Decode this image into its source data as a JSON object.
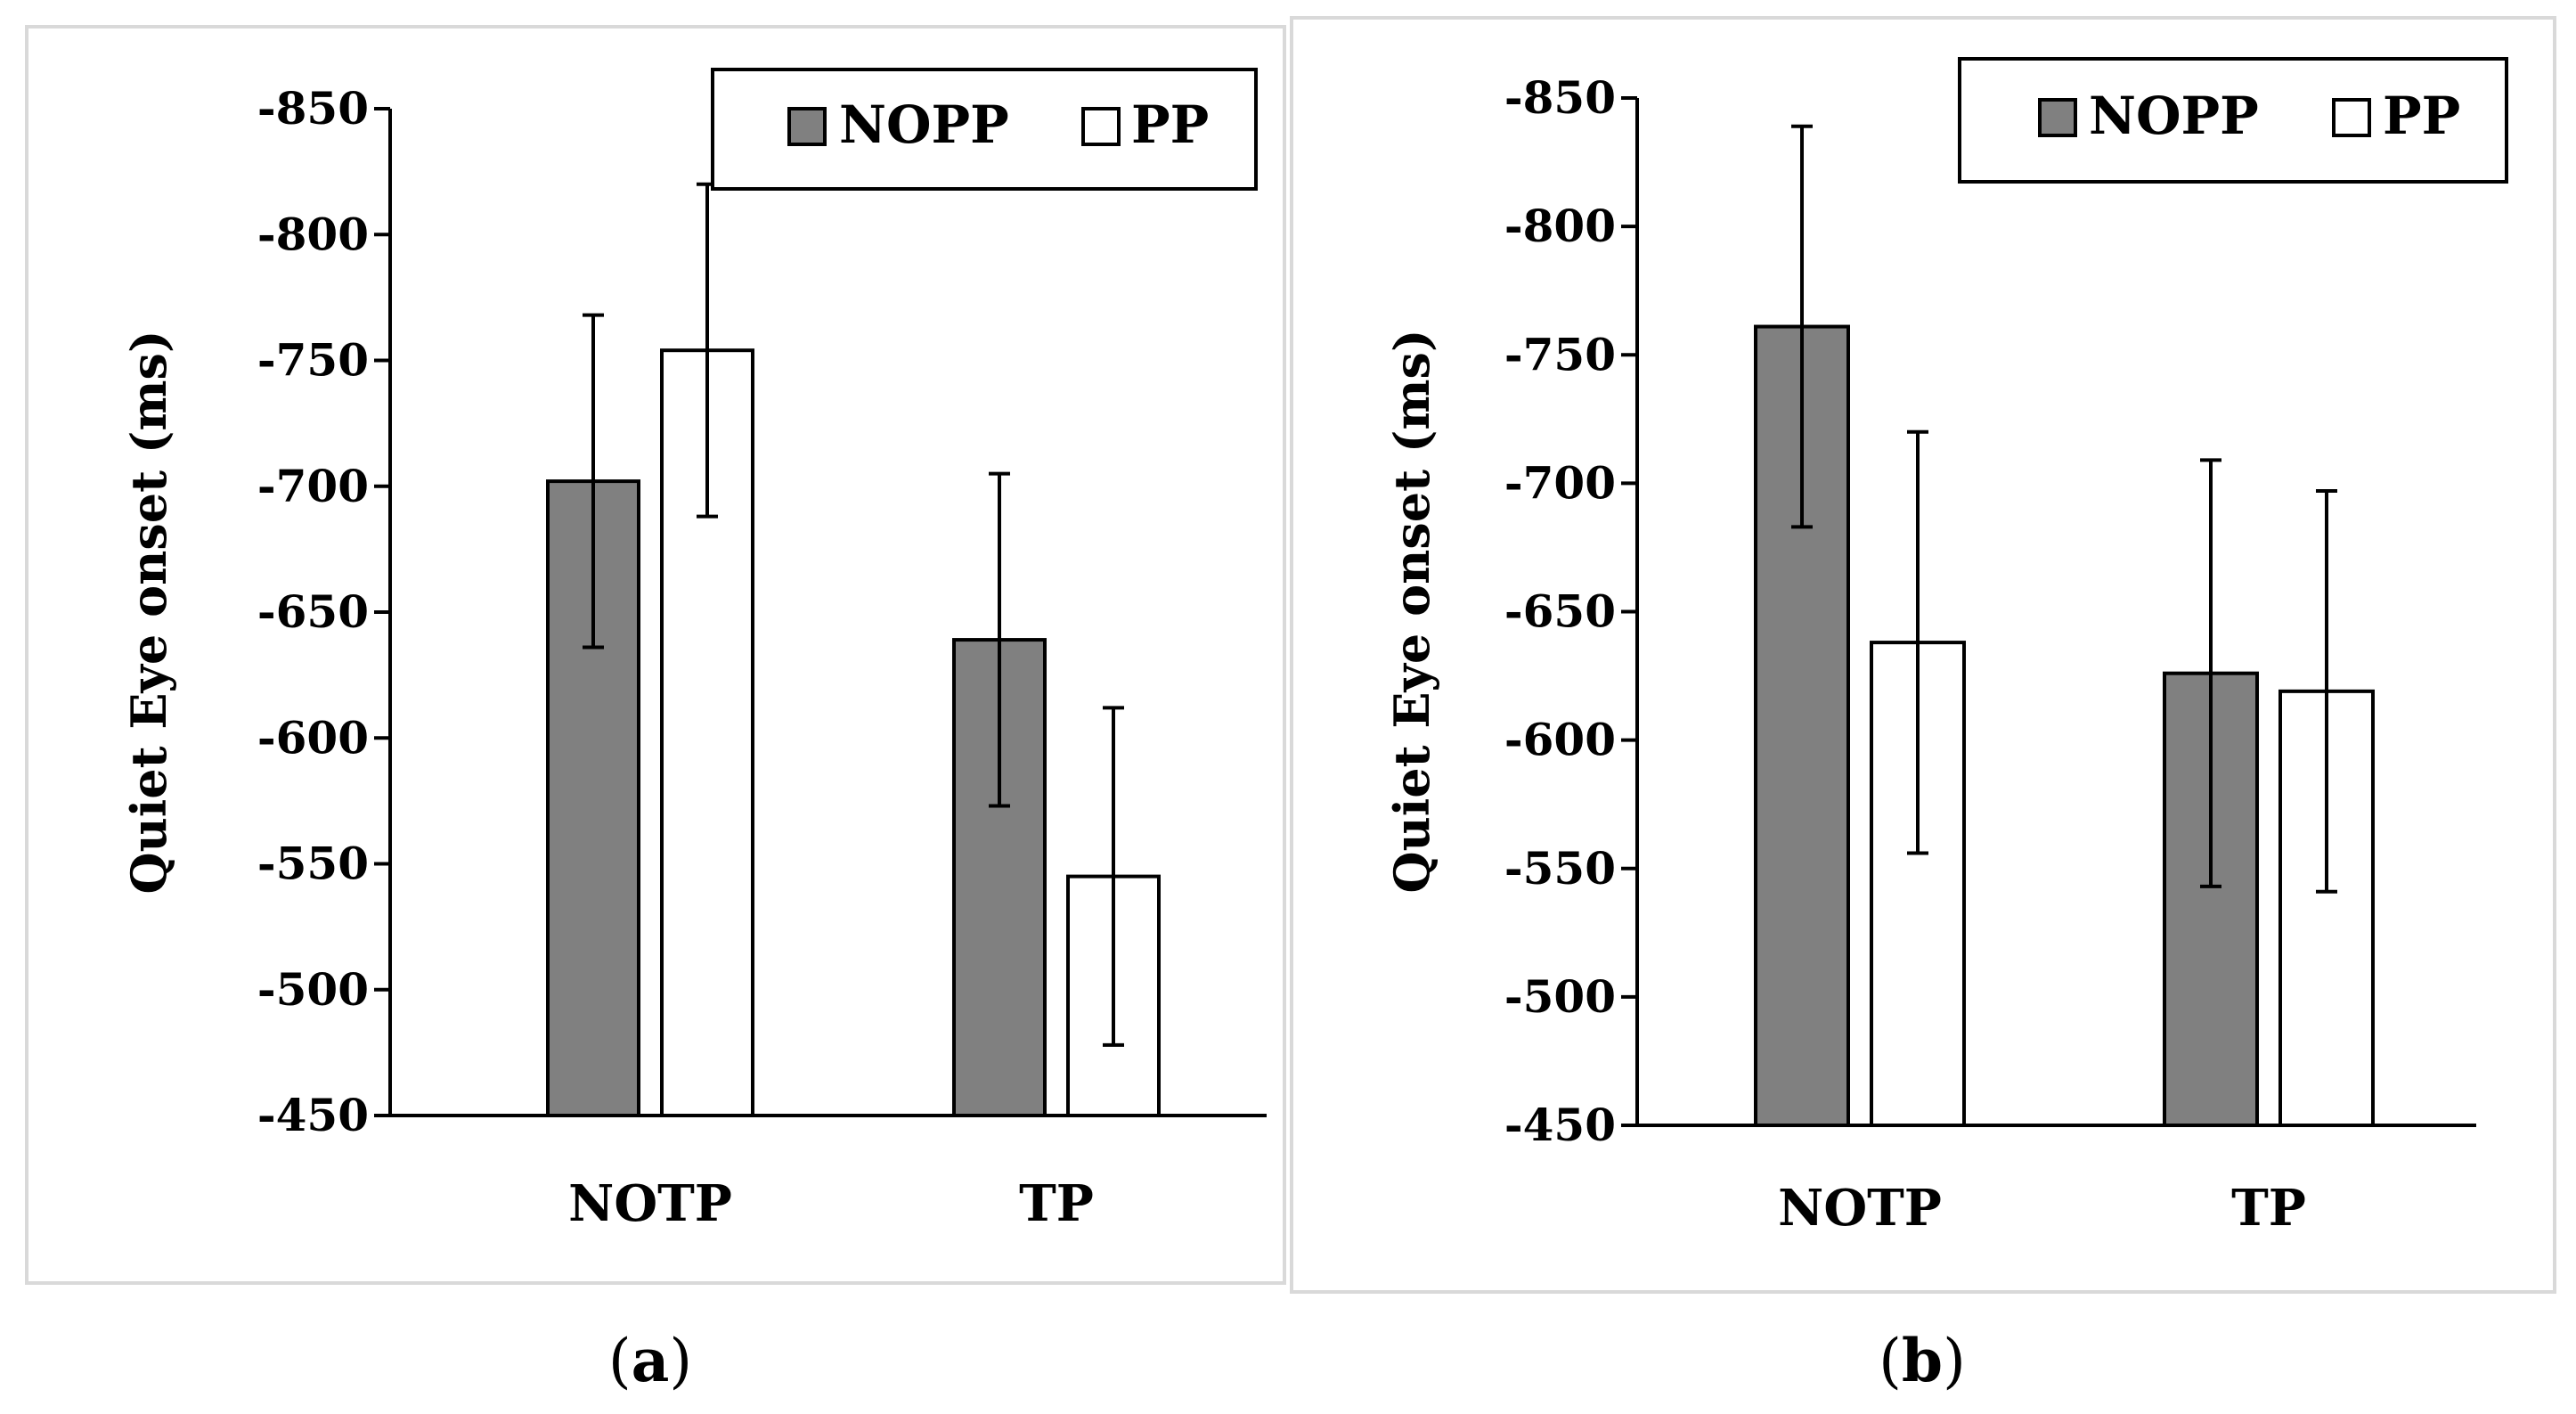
{
  "figure": {
    "captions": [
      "a",
      "b"
    ]
  },
  "chart_data": [
    {
      "type": "bar",
      "panel": "a",
      "title": "",
      "xlabel": "",
      "ylabel": "Quiet Eye onset (ms)",
      "ylim": [
        -450,
        -850
      ],
      "yticks": [
        -850,
        -800,
        -750,
        -700,
        -650,
        -600,
        -550,
        -500,
        -450
      ],
      "categories": [
        "NOTP",
        "TP"
      ],
      "legend_position": "top-right",
      "series": [
        {
          "name": "NOPP",
          "color": "#808080",
          "values": [
            -702,
            -639
          ],
          "errors": [
            66,
            66
          ]
        },
        {
          "name": "PP",
          "color": "#ffffff",
          "values": [
            -754,
            -545
          ],
          "errors": [
            66,
            67
          ]
        }
      ]
    },
    {
      "type": "bar",
      "panel": "b",
      "title": "",
      "xlabel": "",
      "ylabel": "Quiet Eye onset (ms)",
      "ylim": [
        -450,
        -850
      ],
      "yticks": [
        -850,
        -800,
        -750,
        -700,
        -650,
        -600,
        -550,
        -500,
        -450
      ],
      "categories": [
        "NOTP",
        "TP"
      ],
      "legend_position": "top-right",
      "series": [
        {
          "name": "NOPP",
          "color": "#808080",
          "values": [
            -761,
            -626
          ],
          "errors": [
            78,
            83
          ]
        },
        {
          "name": "PP",
          "color": "#ffffff",
          "values": [
            -638,
            -619
          ],
          "errors": [
            82,
            78
          ]
        }
      ]
    }
  ]
}
